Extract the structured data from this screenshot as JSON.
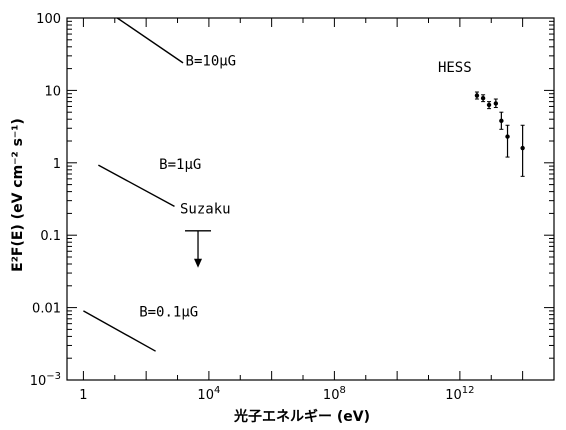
{
  "chart_data": {
    "type": "scatter",
    "title": "",
    "xlabel": "光子エネルギー (eV)",
    "ylabel": "E²F(E) (eV cm⁻² s⁻¹)",
    "xscale": "log",
    "yscale": "log",
    "xlim": [
      0.3,
      1000000000000000.0
    ],
    "ylim": [
      0.001,
      100
    ],
    "grid": false,
    "x_tick_labels": [
      {
        "value": 1,
        "label": "1"
      },
      {
        "value": 10000,
        "label": "10",
        "sup": "4"
      },
      {
        "value": 100000000,
        "label": "10",
        "sup": "8"
      },
      {
        "value": 1000000000000,
        "label": "10",
        "sup": "12"
      }
    ],
    "y_tick_labels": [
      {
        "value": 0.001,
        "label": "10",
        "sup": "−3"
      },
      {
        "value": 0.01,
        "label": "0.01"
      },
      {
        "value": 0.1,
        "label": "0.1"
      },
      {
        "value": 1,
        "label": "1"
      },
      {
        "value": 10,
        "label": "10"
      },
      {
        "value": 100,
        "label": "100"
      }
    ],
    "series": [
      {
        "name": "B=10μG",
        "type": "line",
        "x": [
          12,
          1500
        ],
        "y": [
          100,
          24
        ]
      },
      {
        "name": "B=1μG",
        "type": "line",
        "x": [
          3,
          800
        ],
        "y": [
          0.93,
          0.25
        ]
      },
      {
        "name": "B=0.1μG",
        "type": "line",
        "x": [
          1,
          200
        ],
        "y": [
          0.009,
          0.0025
        ]
      },
      {
        "name": "Suzaku",
        "type": "upper_limit",
        "x": [
          4500
        ],
        "y": [
          0.115
        ]
      },
      {
        "name": "HESS",
        "type": "scatter_errorbar",
        "points": [
          {
            "x": 3500000000000.0,
            "y": 8.5,
            "lo": 7.6,
            "hi": 9.5
          },
          {
            "x": 5500000000000.0,
            "y": 7.8,
            "lo": 7.0,
            "hi": 8.7
          },
          {
            "x": 8500000000000.0,
            "y": 6.3,
            "lo": 5.6,
            "hi": 7.0
          },
          {
            "x": 14000000000000.0,
            "y": 6.6,
            "lo": 5.8,
            "hi": 7.6
          },
          {
            "x": 21000000000000.0,
            "y": 3.8,
            "lo": 2.9,
            "hi": 5.0
          },
          {
            "x": 33000000000000.0,
            "y": 2.3,
            "lo": 1.2,
            "hi": 3.3
          },
          {
            "x": 100000000000000.0,
            "y": 1.6,
            "lo": 0.65,
            "hi": 3.3
          }
        ]
      }
    ],
    "annotations": [
      {
        "text": "B=10μG",
        "x": 1800,
        "y": 22
      },
      {
        "text": "B=1μG",
        "x": 260,
        "y": 0.82
      },
      {
        "text": "Suzaku",
        "x": 1200,
        "y": 0.2
      },
      {
        "text": "B=0.1μG",
        "x": 60,
        "y": 0.0075
      },
      {
        "text": "HESS",
        "x": 200000000000.0,
        "y": 18
      }
    ]
  }
}
